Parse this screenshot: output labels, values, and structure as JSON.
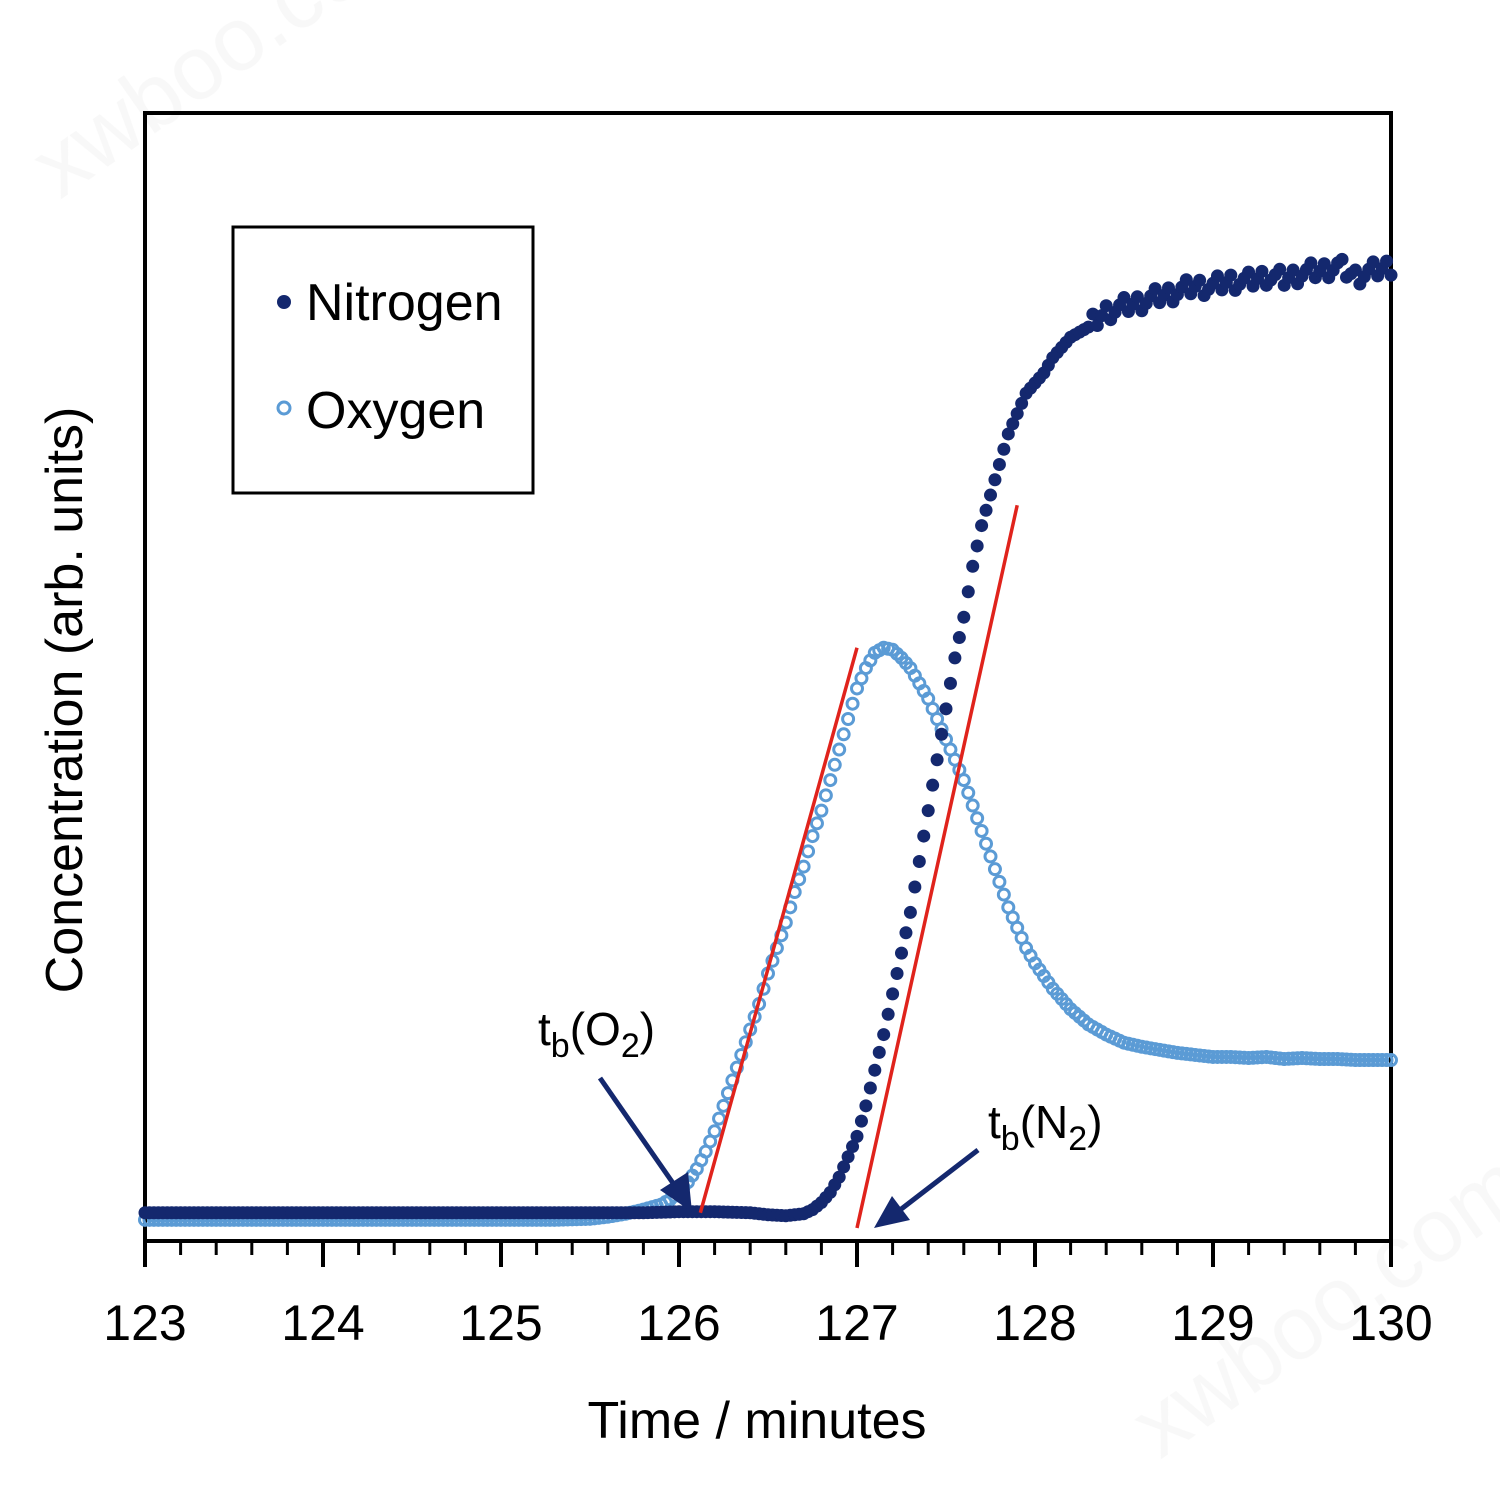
{
  "chart_data": {
    "type": "scatter",
    "xlabel": "Time / minutes",
    "ylabel": "Concentration (arb. units)",
    "xlim": [
      123,
      130
    ],
    "ylim": [
      0,
      1
    ],
    "x_ticks": [
      "123",
      "124",
      "125",
      "126",
      "127",
      "128",
      "129",
      "130"
    ],
    "x_minor_step": 0.2,
    "y_ticks_shown": false,
    "grid": false,
    "legend_position": "top-left",
    "series": [
      {
        "name": "Nitrogen",
        "marker": "filled-circle",
        "color": "#14286e",
        "points": [
          [
            123.0,
            0.015
          ],
          [
            123.5,
            0.015
          ],
          [
            124.0,
            0.015
          ],
          [
            124.5,
            0.015
          ],
          [
            125.0,
            0.015
          ],
          [
            125.5,
            0.015
          ],
          [
            125.8,
            0.015
          ],
          [
            126.0,
            0.016
          ],
          [
            126.2,
            0.016
          ],
          [
            126.4,
            0.015
          ],
          [
            126.5,
            0.013
          ],
          [
            126.6,
            0.012
          ],
          [
            126.7,
            0.014
          ],
          [
            126.75,
            0.018
          ],
          [
            126.8,
            0.025
          ],
          [
            126.85,
            0.035
          ],
          [
            126.9,
            0.05
          ],
          [
            126.95,
            0.07
          ],
          [
            127.0,
            0.09
          ],
          [
            127.05,
            0.12
          ],
          [
            127.1,
            0.155
          ],
          [
            127.15,
            0.19
          ],
          [
            127.2,
            0.23
          ],
          [
            127.25,
            0.27
          ],
          [
            127.3,
            0.31
          ],
          [
            127.35,
            0.36
          ],
          [
            127.4,
            0.41
          ],
          [
            127.45,
            0.46
          ],
          [
            127.5,
            0.51
          ],
          [
            127.55,
            0.56
          ],
          [
            127.6,
            0.6
          ],
          [
            127.65,
            0.65
          ],
          [
            127.7,
            0.69
          ],
          [
            127.75,
            0.72
          ],
          [
            127.8,
            0.75
          ],
          [
            127.85,
            0.78
          ],
          [
            127.9,
            0.8
          ],
          [
            127.95,
            0.82
          ],
          [
            128.0,
            0.83
          ],
          [
            128.05,
            0.84
          ],
          [
            128.1,
            0.855
          ],
          [
            128.15,
            0.865
          ],
          [
            128.2,
            0.875
          ],
          [
            128.3,
            0.885
          ],
          [
            128.4,
            0.9
          ],
          [
            128.5,
            0.905
          ],
          [
            128.6,
            0.91
          ],
          [
            128.7,
            0.915
          ],
          [
            128.8,
            0.92
          ],
          [
            128.9,
            0.925
          ],
          [
            129.0,
            0.925
          ],
          [
            129.1,
            0.93
          ],
          [
            129.2,
            0.93
          ],
          [
            129.3,
            0.935
          ],
          [
            129.4,
            0.932
          ],
          [
            129.5,
            0.938
          ],
          [
            129.6,
            0.94
          ],
          [
            129.7,
            0.945
          ],
          [
            129.8,
            0.935
          ],
          [
            129.9,
            0.94
          ],
          [
            130.0,
            0.945
          ]
        ]
      },
      {
        "name": "Oxygen",
        "marker": "open-circle",
        "color": "#5b9bd5",
        "points": [
          [
            123.0,
            0.008
          ],
          [
            123.5,
            0.008
          ],
          [
            124.0,
            0.008
          ],
          [
            124.5,
            0.008
          ],
          [
            125.0,
            0.008
          ],
          [
            125.3,
            0.008
          ],
          [
            125.5,
            0.009
          ],
          [
            125.6,
            0.011
          ],
          [
            125.7,
            0.014
          ],
          [
            125.8,
            0.018
          ],
          [
            125.9,
            0.023
          ],
          [
            125.95,
            0.028
          ],
          [
            126.0,
            0.035
          ],
          [
            126.05,
            0.045
          ],
          [
            126.1,
            0.058
          ],
          [
            126.15,
            0.075
          ],
          [
            126.2,
            0.095
          ],
          [
            126.25,
            0.12
          ],
          [
            126.3,
            0.145
          ],
          [
            126.35,
            0.17
          ],
          [
            126.4,
            0.195
          ],
          [
            126.45,
            0.22
          ],
          [
            126.5,
            0.25
          ],
          [
            126.55,
            0.275
          ],
          [
            126.6,
            0.3
          ],
          [
            126.65,
            0.33
          ],
          [
            126.7,
            0.355
          ],
          [
            126.75,
            0.385
          ],
          [
            126.8,
            0.41
          ],
          [
            126.85,
            0.44
          ],
          [
            126.9,
            0.47
          ],
          [
            126.95,
            0.5
          ],
          [
            127.0,
            0.53
          ],
          [
            127.05,
            0.55
          ],
          [
            127.1,
            0.565
          ],
          [
            127.15,
            0.57
          ],
          [
            127.2,
            0.568
          ],
          [
            127.25,
            0.56
          ],
          [
            127.3,
            0.55
          ],
          [
            127.35,
            0.535
          ],
          [
            127.4,
            0.52
          ],
          [
            127.45,
            0.5
          ],
          [
            127.5,
            0.48
          ],
          [
            127.55,
            0.46
          ],
          [
            127.6,
            0.44
          ],
          [
            127.65,
            0.415
          ],
          [
            127.7,
            0.39
          ],
          [
            127.75,
            0.365
          ],
          [
            127.8,
            0.34
          ],
          [
            127.85,
            0.315
          ],
          [
            127.9,
            0.295
          ],
          [
            127.95,
            0.275
          ],
          [
            128.0,
            0.26
          ],
          [
            128.1,
            0.235
          ],
          [
            128.2,
            0.215
          ],
          [
            128.3,
            0.2
          ],
          [
            128.4,
            0.19
          ],
          [
            128.5,
            0.182
          ],
          [
            128.6,
            0.178
          ],
          [
            128.7,
            0.175
          ],
          [
            128.8,
            0.172
          ],
          [
            128.9,
            0.17
          ],
          [
            129.0,
            0.168
          ],
          [
            129.1,
            0.168
          ],
          [
            129.2,
            0.167
          ],
          [
            129.3,
            0.168
          ],
          [
            129.4,
            0.166
          ],
          [
            129.5,
            0.167
          ],
          [
            129.6,
            0.166
          ],
          [
            129.7,
            0.166
          ],
          [
            129.8,
            0.165
          ],
          [
            129.9,
            0.165
          ],
          [
            130.0,
            0.165
          ]
        ]
      }
    ],
    "fit_lines": [
      {
        "color": "#e0231c",
        "x": [
          126.12,
          127.0
        ],
        "y": [
          0.015,
          0.57
        ]
      },
      {
        "color": "#e0231c",
        "x": [
          127.0,
          127.9
        ],
        "y": [
          0.0,
          0.71
        ]
      }
    ],
    "annotations": [
      {
        "base": "t",
        "sub": "b",
        "paren_open": "(",
        "species": "O",
        "species_sub": "2",
        "paren_close": ")"
      },
      {
        "base": "t",
        "sub": "b",
        "paren_open": "(",
        "species": "N",
        "species_sub": "2",
        "paren_close": ")"
      }
    ],
    "arrow_color": "#14286e"
  }
}
